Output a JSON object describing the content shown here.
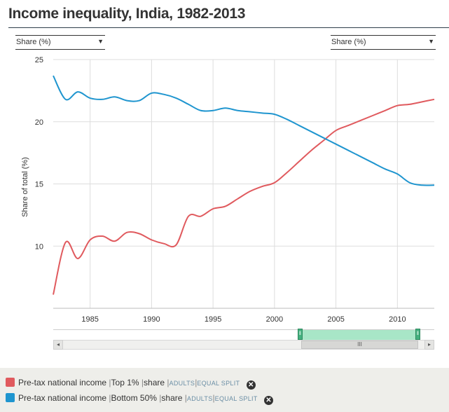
{
  "title": "Income inequality, India, 1982-2013",
  "dropdown_left": {
    "label": "Share (%)"
  },
  "dropdown_right": {
    "label": "Share (%)"
  },
  "legend": [
    {
      "color": "#e05a5e",
      "indicator": "Pre-tax national income",
      "group": "Top 1%",
      "measure": "share",
      "unit": "ADULTS",
      "split": "EQUAL SPLIT"
    },
    {
      "color": "#1f95cf",
      "indicator": "Pre-tax national income",
      "group": "Bottom 50%",
      "measure": "share",
      "unit": "ADULTS",
      "split": "EQUAL SPLIT"
    }
  ],
  "chart_data": {
    "type": "line",
    "title": "Income inequality, India, 1982-2013",
    "xlabel": "",
    "ylabel": "Share of total (%)",
    "xlim": [
      1982,
      2013
    ],
    "ylim": [
      5,
      25
    ],
    "yticks": [
      10,
      15,
      20,
      25
    ],
    "xticks": [
      1985,
      1990,
      1995,
      2000,
      2005,
      2010
    ],
    "grid": true,
    "x": [
      1982,
      1983,
      1984,
      1985,
      1986,
      1987,
      1988,
      1989,
      1990,
      1991,
      1992,
      1993,
      1994,
      1995,
      1996,
      1997,
      1998,
      1999,
      2000,
      2001,
      2002,
      2003,
      2004,
      2005,
      2006,
      2007,
      2008,
      2009,
      2010,
      2011,
      2012,
      2013
    ],
    "series": [
      {
        "name": "Top 1%",
        "color": "#e05a5e",
        "values": [
          6.1,
          10.3,
          9.0,
          10.5,
          10.8,
          10.4,
          11.1,
          11.0,
          10.5,
          10.2,
          10.1,
          12.4,
          12.4,
          13.0,
          13.2,
          13.8,
          14.4,
          14.8,
          15.1,
          15.9,
          16.8,
          17.7,
          18.5,
          19.3,
          19.7,
          20.1,
          20.5,
          20.9,
          21.3,
          21.4,
          21.6,
          21.8
        ]
      },
      {
        "name": "Bottom 50%",
        "color": "#1f95cf",
        "values": [
          23.7,
          21.8,
          22.4,
          21.9,
          21.8,
          22.0,
          21.7,
          21.7,
          22.3,
          22.2,
          21.9,
          21.4,
          20.9,
          20.9,
          21.1,
          20.9,
          20.8,
          20.7,
          20.6,
          20.2,
          19.7,
          19.2,
          18.7,
          18.2,
          17.7,
          17.2,
          16.7,
          16.2,
          15.8,
          15.1,
          14.9,
          14.9
        ]
      }
    ]
  },
  "navigator": {
    "range": [
      2002,
      2013
    ],
    "scrollbar_grip": "III",
    "left_arrow": "◂",
    "right_arrow": "▸"
  }
}
